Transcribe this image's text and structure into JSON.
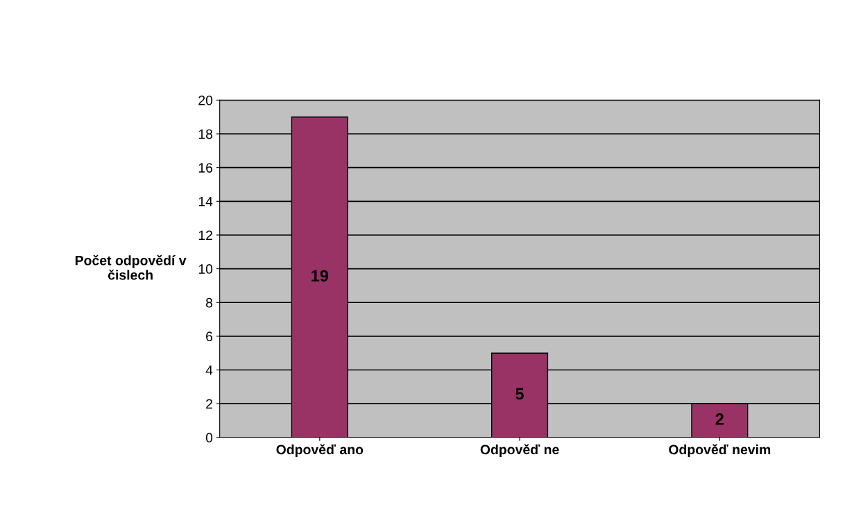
{
  "chart_data": {
    "type": "bar",
    "ylabel": "Počet odpovědí v\nčislech",
    "categories": [
      "Odpověď ano",
      "Odpověď ne",
      "Odpověď nevim"
    ],
    "values": [
      19,
      5,
      2
    ],
    "color": "#993366",
    "ylim": [
      0,
      20
    ],
    "yticks": [
      0,
      2,
      4,
      6,
      8,
      10,
      12,
      14,
      16,
      18,
      20
    ],
    "grid": "y",
    "data_labels": true
  }
}
